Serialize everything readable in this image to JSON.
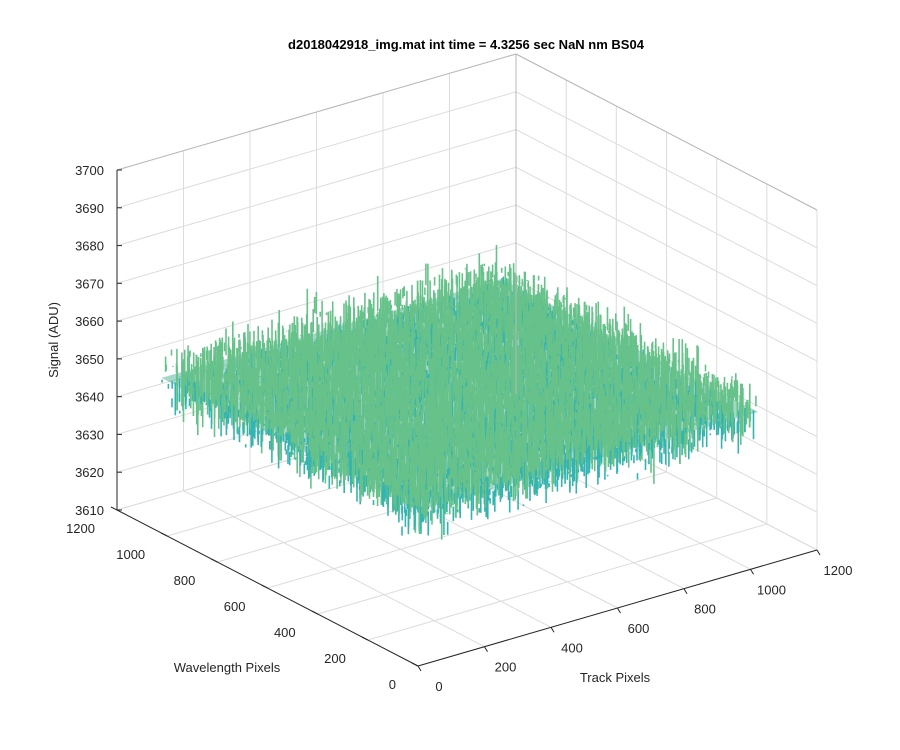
{
  "chart_data": {
    "type": "surface",
    "title": "d2018042918_img.mat int time = 4.3256 sec  NaN nm BS04",
    "xlabel": "Track Pixels",
    "ylabel": "Wavelength Pixels",
    "zlabel": "Signal (ADU)",
    "xlim": [
      0,
      1200
    ],
    "ylim": [
      0,
      1200
    ],
    "zlim": [
      3610,
      3700
    ],
    "x_ticks": [
      "0",
      "200",
      "400",
      "600",
      "800",
      "1000",
      "1200"
    ],
    "y_ticks": [
      "0",
      "200",
      "400",
      "600",
      "800",
      "1000",
      "1200"
    ],
    "z_ticks": [
      "3610",
      "3620",
      "3630",
      "3640",
      "3650",
      "3660",
      "3670",
      "3680",
      "3690",
      "3700"
    ],
    "data_extent": {
      "x": [
        1,
        1024
      ],
      "y": [
        1,
        1024
      ]
    },
    "signal_mean": 3651,
    "signal_range_approx": [
      3615,
      3690
    ],
    "grid": true,
    "colormap": [
      "#0072bd",
      "#1a9fce",
      "#34b4b0",
      "#67c28a",
      "#b4c258",
      "#e8b83a"
    ]
  }
}
